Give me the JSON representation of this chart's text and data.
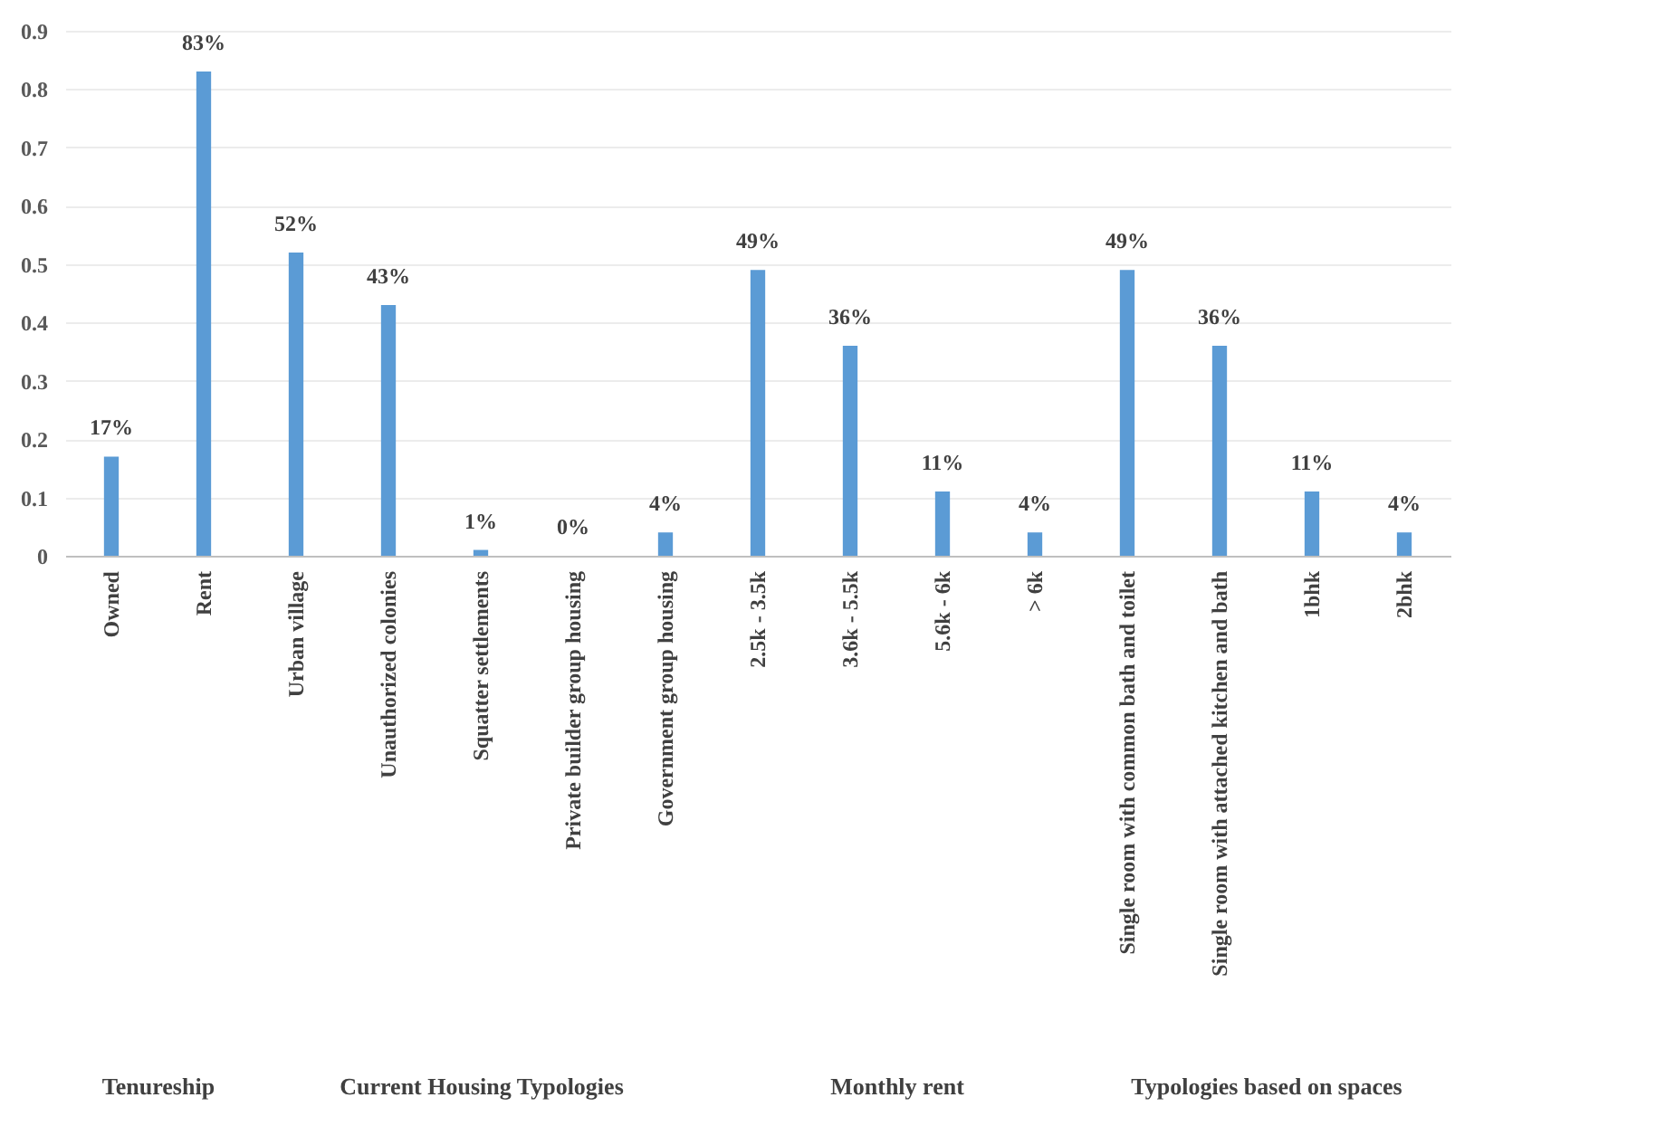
{
  "chart_data": [
    {
      "type": "bar",
      "xlabel": "Tenureship",
      "categories": [
        "Owned",
        "Rent"
      ],
      "values": [
        0.17,
        0.83
      ],
      "value_labels": [
        "17%",
        "83%"
      ],
      "color": "#5b9bd5",
      "ylim": [
        0,
        0.9
      ],
      "yticks": [
        0,
        0.1,
        0.2,
        0.3,
        0.4,
        0.5,
        0.6,
        0.7,
        0.8,
        0.9
      ],
      "grid": "y"
    },
    {
      "type": "bar",
      "xlabel": "Current Housing Typologies",
      "categories": [
        "Urban village",
        "Unauthorized  colonies",
        "Squatter  settlements",
        "Private builder group housing",
        "Government  group housing"
      ],
      "values": [
        0.52,
        0.43,
        0.01,
        0,
        0.04
      ],
      "value_labels": [
        "52%",
        "43%",
        "1%",
        "0%",
        "4%"
      ],
      "color": "#5b9bd5",
      "ylim": [
        0,
        0.9
      ],
      "yticks": [
        0,
        0.1,
        0.2,
        0.3,
        0.4,
        0.5,
        0.6,
        0.7,
        0.8,
        0.9
      ],
      "grid": "y",
      "tick_labels": "x"
    },
    {
      "type": "bar",
      "xlabel": "Monthly rent",
      "categories": [
        "2.5k - 3.5k",
        "3.6k - 5.5k",
        "5.6k - 6k",
        "> 6k"
      ],
      "values": [
        0.49,
        0.36,
        0.11,
        0.04
      ],
      "value_labels": [
        "49%",
        "36%",
        "11%",
        "4%"
      ],
      "color": "#5b9bd5",
      "ylim": [
        0,
        0.9
      ],
      "yticks": [
        0,
        0.1,
        0.2,
        0.3,
        0.4,
        0.5,
        0.6,
        0.7,
        0.8,
        0.9
      ],
      "grid": "y",
      "tick_labels": "x"
    },
    {
      "type": "bar",
      "xlabel": "Typologies based on spaces",
      "categories": [
        "Single room with common bath and toilet",
        "Single room with attached kitchen and bath",
        "1bhk",
        "2bhk"
      ],
      "values": [
        0.49,
        0.36,
        0.11,
        0.04
      ],
      "value_labels": [
        "49%",
        "36%",
        "11%",
        "4%"
      ],
      "color": "#5b9bd5",
      "ylim": [
        0,
        0.9
      ],
      "yticks": [
        0,
        0.1,
        0.2,
        0.3,
        0.4,
        0.5,
        0.6,
        0.7,
        0.8,
        0.9
      ],
      "grid": "y",
      "tick_labels": "x"
    }
  ]
}
